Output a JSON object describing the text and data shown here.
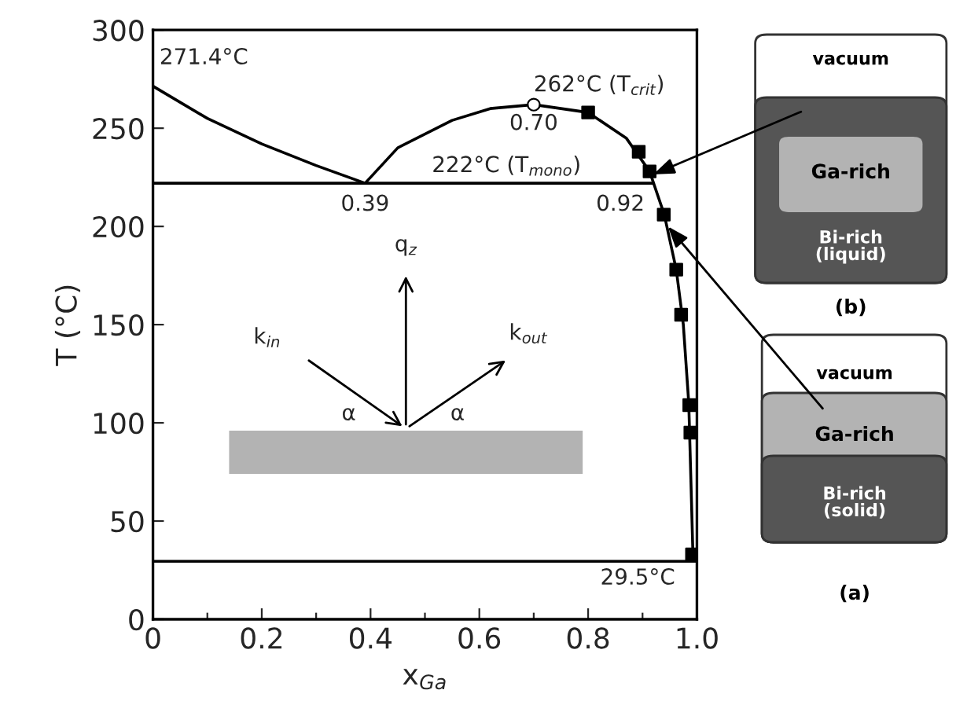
{
  "chart_data": {
    "type": "line",
    "xlabel": "x$_{Ga}$",
    "ylabel": "T (°C)",
    "xlim": [
      0,
      1.0
    ],
    "ylim": [
      0,
      300
    ],
    "xticks": [
      0,
      {
        "value": 0.1,
        "label": null
      },
      0.2,
      {
        "value": 0.3,
        "label": null
      },
      0.4,
      {
        "value": 0.5,
        "label": null
      },
      0.6,
      {
        "value": 0.7,
        "label": null
      },
      0.8,
      {
        "value": 0.9,
        "label": null
      },
      {
        "value": 1.0,
        "label": "1.0"
      }
    ],
    "yticks": [
      0,
      50,
      100,
      150,
      200,
      250,
      300
    ],
    "grid": false,
    "legend": false,
    "series": [
      {
        "color": "#000000",
        "x": [
          0,
          0.1,
          0.2,
          0.3,
          0.39
        ],
        "values": [
          271.4,
          255,
          242,
          231,
          222
        ]
      },
      {
        "color": "#000000",
        "x": [
          0.39,
          0.45,
          0.55,
          0.62,
          0.7,
          0.8,
          0.87,
          0.913,
          0.94,
          0.962,
          0.975,
          0.985,
          0.99,
          0.993
        ],
        "values": [
          222,
          240,
          254,
          260,
          262,
          258,
          245,
          228,
          206,
          178,
          150,
          110,
          60,
          29.5
        ]
      },
      {
        "color": "#000000",
        "x": [
          0,
          0.92
        ],
        "values": [
          222,
          222
        ]
      },
      {
        "color": "#000000",
        "x": [
          0,
          1.0
        ],
        "values": [
          29.5,
          29.5
        ]
      },
      {
        "type": "scatter",
        "marker": "square",
        "color": "#000000",
        "x": [
          0.8,
          0.893,
          0.913,
          0.939,
          0.962,
          0.971,
          0.986,
          0.988,
          0.991
        ],
        "values": [
          258,
          238,
          228,
          206,
          178,
          155,
          109,
          95,
          33
        ]
      },
      {
        "type": "scatter",
        "marker": "circle",
        "color": "#ffffff",
        "x": [
          0.7
        ],
        "values": [
          262
        ]
      }
    ],
    "annotations": [
      {
        "text": "271.4°C",
        "x": 0,
        "y": 271.4
      },
      {
        "text": "0.39",
        "x": 0.39,
        "y": 222
      },
      {
        "text": "262°C (T$_{crit}$)",
        "x": 0.7,
        "y": 262
      },
      {
        "text": "0.70",
        "x": 0.7,
        "y": 262
      },
      {
        "text": "222°C (T$_{mono}$)",
        "x": 0.65,
        "y": 222
      },
      {
        "text": "0.92",
        "x": 0.92,
        "y": 222
      },
      {
        "text": "29.5°C",
        "x": 1.0,
        "y": 29.5
      },
      "q$_{z}$",
      "k$_{in}$",
      "k$_{out}$",
      "α",
      "α",
      "vacuum",
      "Ga-rich",
      "Bi-rich\n(liquid)",
      "(b)",
      "vacuum",
      "Ga-rich",
      "Bi-rich\n(solid)",
      "(a)"
    ]
  }
}
